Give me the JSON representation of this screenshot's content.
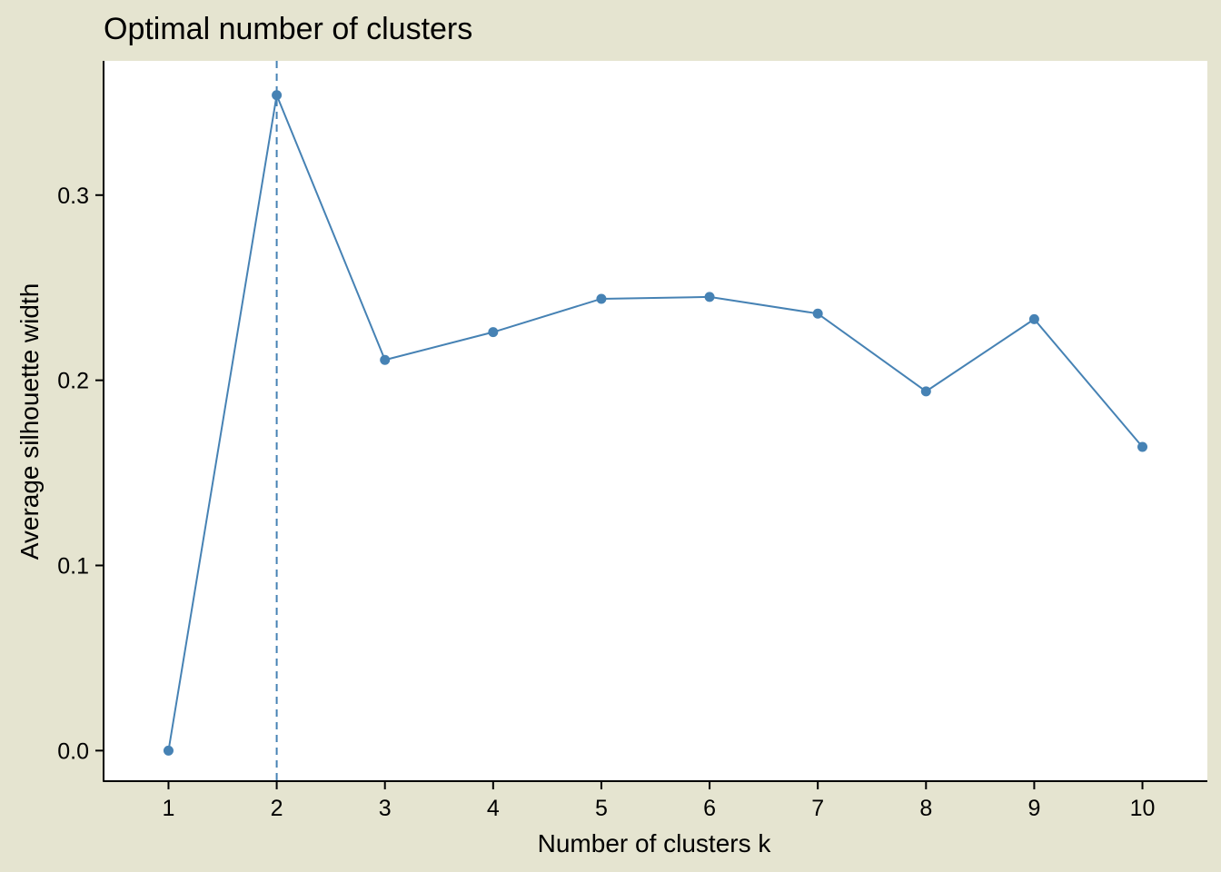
{
  "chart_data": {
    "type": "line",
    "title": "Optimal number of clusters",
    "xlabel": "Number of clusters k",
    "ylabel": "Average silhouette width",
    "x": [
      1,
      2,
      3,
      4,
      5,
      6,
      7,
      8,
      9,
      10
    ],
    "xticks": [
      "1",
      "2",
      "3",
      "4",
      "5",
      "6",
      "7",
      "8",
      "9",
      "10"
    ],
    "yticks": [
      0.0,
      0.1,
      0.2,
      0.3
    ],
    "ytick_labels": [
      "0.0",
      "0.1",
      "0.2",
      "0.3"
    ],
    "xlim": [
      0.4,
      10.6
    ],
    "ylim": [
      -0.0165,
      0.3725
    ],
    "series": [
      {
        "values": [
          0.0,
          0.354,
          0.211,
          0.226,
          0.244,
          0.245,
          0.236,
          0.194,
          0.233,
          0.164
        ],
        "color": "#4682b4"
      }
    ],
    "reference_line": {
      "x": 2,
      "style": "dashed",
      "color": "#4682b4"
    },
    "grid": false,
    "legend": "none",
    "colors": {
      "panel": "#ffffff",
      "background": "#e5e4d0",
      "axis": "#000000"
    }
  }
}
